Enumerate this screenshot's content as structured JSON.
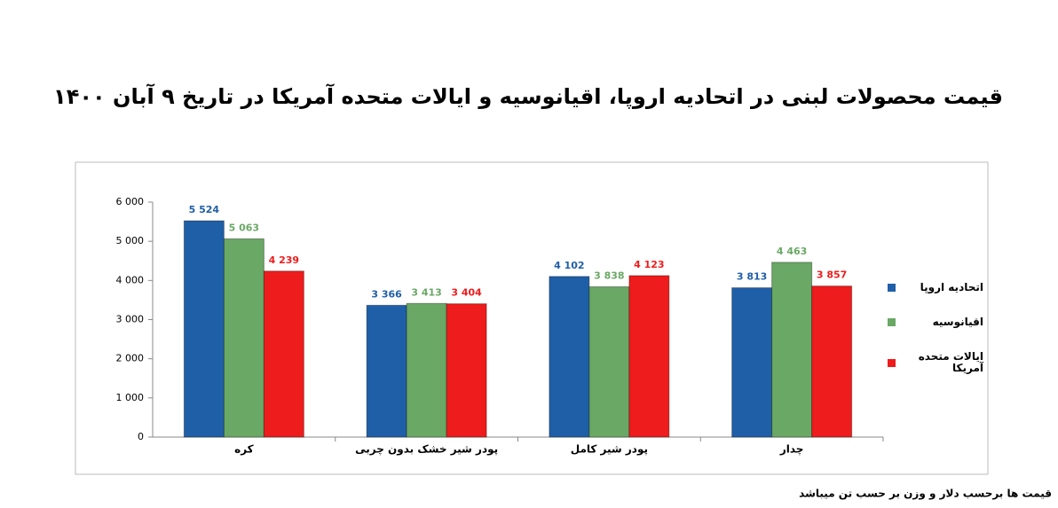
{
  "chart_data": {
    "type": "bar",
    "title": "قیمت محصولات لبنی در اتحادیه اروپا، اقیانوسیه و ایالات متحده آمریکا در تاریخ  ۹ آبان ۱۴۰۰",
    "note": "قیمت ها برحسب دلار و وزن بر حسب تن میباشد",
    "categories": [
      "کره",
      "پودر شیر خشک بدون چربی",
      "پودر شیر کامل",
      "چدار"
    ],
    "series": [
      {
        "name": "اتحادیه اروپا",
        "color": "#1f5fa8",
        "values": [
          5524,
          3366,
          4102,
          3813
        ],
        "value_labels": [
          "5 524",
          "3 366",
          "4 102",
          "3 813"
        ]
      },
      {
        "name": "اقیانوسیه",
        "color": "#6aa865",
        "values": [
          5063,
          3413,
          3838,
          4463
        ],
        "value_labels": [
          "5 063",
          "3 413",
          "3 838",
          "4 463"
        ]
      },
      {
        "name": "ایالات متحده آمریکا",
        "color": "#ee1c1c",
        "values": [
          4239,
          3404,
          4123,
          3857
        ],
        "value_labels": [
          "4 239",
          "3 404",
          "4 123",
          "3 857"
        ]
      }
    ],
    "ylim": [
      0,
      6000
    ],
    "yticks": [
      0,
      {
        "value": 1000,
        "label": "1 000"
      },
      {
        "value": 2000,
        "label": "2 000"
      },
      {
        "value": 3000,
        "label": "3 000"
      },
      {
        "value": 4000,
        "label": "4 000"
      },
      {
        "value": 5000,
        "label": "5 000"
      },
      {
        "value": 6000,
        "label": "6 000"
      }
    ],
    "grid": false,
    "legend": "right"
  }
}
